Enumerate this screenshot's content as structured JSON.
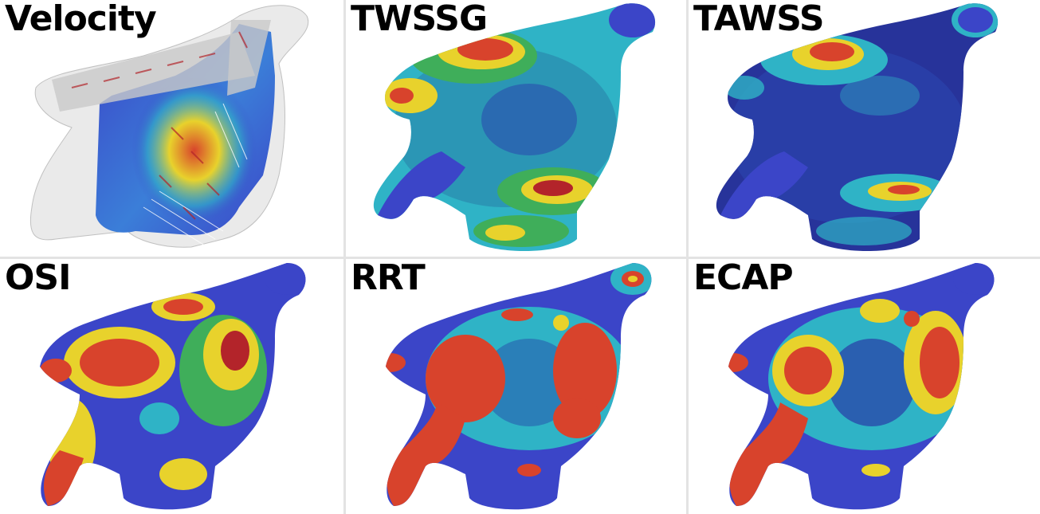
{
  "panels": [
    {
      "label": "Velocity"
    },
    {
      "label": "TWSSG"
    },
    {
      "label": "TAWSS"
    },
    {
      "label": "OSI"
    },
    {
      "label": "RRT"
    },
    {
      "label": "ECAP"
    }
  ],
  "colors": {
    "low": "#3b45c8",
    "mid_low": "#2fb3c6",
    "mid": "#3fae5a",
    "mid_high": "#e8d22c",
    "high": "#d8432c",
    "peak": "#b3242a",
    "divider": "#e3e3e3",
    "transparent_shell": "#d8d8d8"
  }
}
